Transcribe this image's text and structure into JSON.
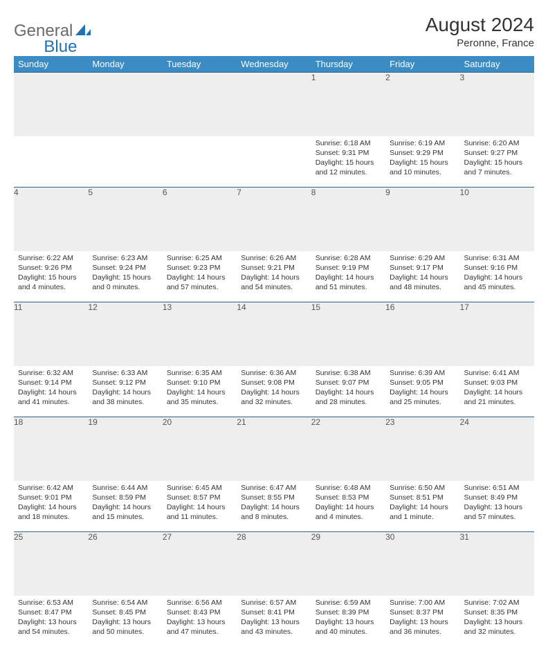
{
  "logo": {
    "part1": "General",
    "part2": "Blue"
  },
  "title": "August 2024",
  "subtitle": "Peronne, France",
  "colors": {
    "header_bg": "#3b8bc4",
    "header_text": "#ffffff",
    "cell_border": "#2f5f8a",
    "daynum_bg": "#eeeeee",
    "logo_gray": "#6a6a6a",
    "logo_blue": "#2171b5"
  },
  "weekdays": [
    "Sunday",
    "Monday",
    "Tuesday",
    "Wednesday",
    "Thursday",
    "Friday",
    "Saturday"
  ],
  "weeks": [
    [
      null,
      null,
      null,
      null,
      {
        "n": "1",
        "sunrise": "6:18 AM",
        "sunset": "9:31 PM",
        "daylight": "15 hours and 12 minutes."
      },
      {
        "n": "2",
        "sunrise": "6:19 AM",
        "sunset": "9:29 PM",
        "daylight": "15 hours and 10 minutes."
      },
      {
        "n": "3",
        "sunrise": "6:20 AM",
        "sunset": "9:27 PM",
        "daylight": "15 hours and 7 minutes."
      }
    ],
    [
      {
        "n": "4",
        "sunrise": "6:22 AM",
        "sunset": "9:26 PM",
        "daylight": "15 hours and 4 minutes."
      },
      {
        "n": "5",
        "sunrise": "6:23 AM",
        "sunset": "9:24 PM",
        "daylight": "15 hours and 0 minutes."
      },
      {
        "n": "6",
        "sunrise": "6:25 AM",
        "sunset": "9:23 PM",
        "daylight": "14 hours and 57 minutes."
      },
      {
        "n": "7",
        "sunrise": "6:26 AM",
        "sunset": "9:21 PM",
        "daylight": "14 hours and 54 minutes."
      },
      {
        "n": "8",
        "sunrise": "6:28 AM",
        "sunset": "9:19 PM",
        "daylight": "14 hours and 51 minutes."
      },
      {
        "n": "9",
        "sunrise": "6:29 AM",
        "sunset": "9:17 PM",
        "daylight": "14 hours and 48 minutes."
      },
      {
        "n": "10",
        "sunrise": "6:31 AM",
        "sunset": "9:16 PM",
        "daylight": "14 hours and 45 minutes."
      }
    ],
    [
      {
        "n": "11",
        "sunrise": "6:32 AM",
        "sunset": "9:14 PM",
        "daylight": "14 hours and 41 minutes."
      },
      {
        "n": "12",
        "sunrise": "6:33 AM",
        "sunset": "9:12 PM",
        "daylight": "14 hours and 38 minutes."
      },
      {
        "n": "13",
        "sunrise": "6:35 AM",
        "sunset": "9:10 PM",
        "daylight": "14 hours and 35 minutes."
      },
      {
        "n": "14",
        "sunrise": "6:36 AM",
        "sunset": "9:08 PM",
        "daylight": "14 hours and 32 minutes."
      },
      {
        "n": "15",
        "sunrise": "6:38 AM",
        "sunset": "9:07 PM",
        "daylight": "14 hours and 28 minutes."
      },
      {
        "n": "16",
        "sunrise": "6:39 AM",
        "sunset": "9:05 PM",
        "daylight": "14 hours and 25 minutes."
      },
      {
        "n": "17",
        "sunrise": "6:41 AM",
        "sunset": "9:03 PM",
        "daylight": "14 hours and 21 minutes."
      }
    ],
    [
      {
        "n": "18",
        "sunrise": "6:42 AM",
        "sunset": "9:01 PM",
        "daylight": "14 hours and 18 minutes."
      },
      {
        "n": "19",
        "sunrise": "6:44 AM",
        "sunset": "8:59 PM",
        "daylight": "14 hours and 15 minutes."
      },
      {
        "n": "20",
        "sunrise": "6:45 AM",
        "sunset": "8:57 PM",
        "daylight": "14 hours and 11 minutes."
      },
      {
        "n": "21",
        "sunrise": "6:47 AM",
        "sunset": "8:55 PM",
        "daylight": "14 hours and 8 minutes."
      },
      {
        "n": "22",
        "sunrise": "6:48 AM",
        "sunset": "8:53 PM",
        "daylight": "14 hours and 4 minutes."
      },
      {
        "n": "23",
        "sunrise": "6:50 AM",
        "sunset": "8:51 PM",
        "daylight": "14 hours and 1 minute."
      },
      {
        "n": "24",
        "sunrise": "6:51 AM",
        "sunset": "8:49 PM",
        "daylight": "13 hours and 57 minutes."
      }
    ],
    [
      {
        "n": "25",
        "sunrise": "6:53 AM",
        "sunset": "8:47 PM",
        "daylight": "13 hours and 54 minutes."
      },
      {
        "n": "26",
        "sunrise": "6:54 AM",
        "sunset": "8:45 PM",
        "daylight": "13 hours and 50 minutes."
      },
      {
        "n": "27",
        "sunrise": "6:56 AM",
        "sunset": "8:43 PM",
        "daylight": "13 hours and 47 minutes."
      },
      {
        "n": "28",
        "sunrise": "6:57 AM",
        "sunset": "8:41 PM",
        "daylight": "13 hours and 43 minutes."
      },
      {
        "n": "29",
        "sunrise": "6:59 AM",
        "sunset": "8:39 PM",
        "daylight": "13 hours and 40 minutes."
      },
      {
        "n": "30",
        "sunrise": "7:00 AM",
        "sunset": "8:37 PM",
        "daylight": "13 hours and 36 minutes."
      },
      {
        "n": "31",
        "sunrise": "7:02 AM",
        "sunset": "8:35 PM",
        "daylight": "13 hours and 32 minutes."
      }
    ]
  ],
  "labels": {
    "sunrise": "Sunrise: ",
    "sunset": "Sunset: ",
    "daylight": "Daylight: "
  }
}
